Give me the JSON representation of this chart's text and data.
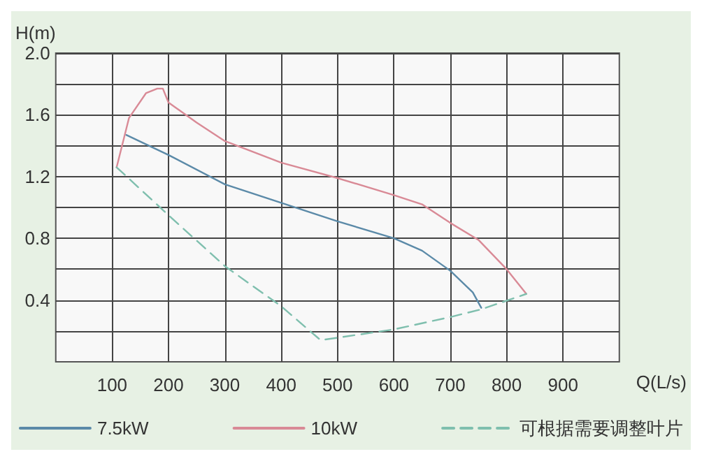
{
  "chart_data": {
    "type": "line",
    "xlabel": "Q(L/s)",
    "ylabel": "H(m)",
    "xlim": [
      0,
      1000
    ],
    "xticks": [
      100,
      200,
      300,
      400,
      500,
      600,
      700,
      800,
      900
    ],
    "ylim": [
      0,
      2.0
    ],
    "yticks": [
      {
        "value": 0.2,
        "label": null
      },
      0.4,
      {
        "value": 0.6,
        "label": null
      },
      0.8,
      {
        "value": 1.0,
        "label": null
      },
      1.2,
      {
        "value": 1.4,
        "label": null
      },
      1.6,
      {
        "value": 1.8,
        "label": null
      },
      {
        "value": 2.0,
        "label": "2.0"
      }
    ],
    "grid": true,
    "legend": "bottom",
    "marker": "none",
    "series": [
      {
        "name": "7.5kW",
        "color": "#5b8aa8",
        "line_style": "solid",
        "x": [
          125,
          200,
          300,
          400,
          500,
          600,
          650,
          700,
          740,
          755
        ],
        "values": [
          1.47,
          1.34,
          1.15,
          1.03,
          0.91,
          0.8,
          0.72,
          0.59,
          0.45,
          0.35
        ]
      },
      {
        "name": "10kW",
        "color": "#d98a96",
        "line_style": "solid",
        "x": [
          108,
          130,
          160,
          180,
          190,
          200,
          250,
          300,
          400,
          500,
          600,
          650,
          700,
          750,
          800,
          835
        ],
        "values": [
          1.26,
          1.58,
          1.74,
          1.77,
          1.77,
          1.68,
          1.55,
          1.43,
          1.29,
          1.19,
          1.08,
          1.02,
          0.9,
          0.79,
          0.6,
          0.44
        ]
      },
      {
        "name": "可根据需要调整叶片",
        "color": "#7fbfae",
        "line_style": "dashed",
        "x": [
          108,
          120,
          200,
          300,
          400,
          470,
          600,
          700,
          755,
          835
        ],
        "values": [
          1.26,
          1.22,
          0.95,
          0.62,
          0.36,
          0.14,
          0.21,
          0.29,
          0.34,
          0.44
        ]
      }
    ]
  }
}
